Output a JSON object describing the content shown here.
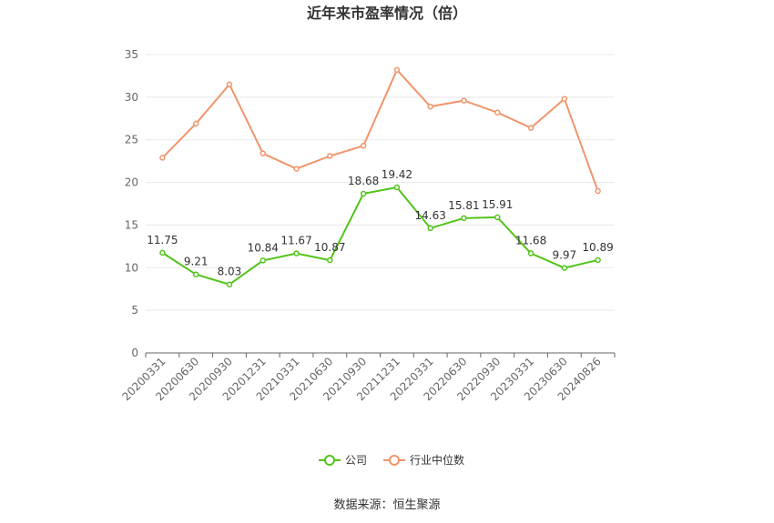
{
  "chart_data": {
    "type": "line",
    "title": "近年来市盈率情况（倍）",
    "categories": [
      "20200331",
      "20200630",
      "20200930",
      "20201231",
      "20210331",
      "20210630",
      "20210930",
      "20211231",
      "20220331",
      "20220630",
      "20220930",
      "20230331",
      "20230630",
      "20240826"
    ],
    "series": [
      {
        "name": "公司",
        "color": "#52c41a",
        "show_labels": true,
        "values": [
          11.75,
          9.21,
          8.03,
          10.84,
          11.67,
          10.87,
          18.68,
          19.42,
          14.63,
          15.81,
          15.91,
          11.68,
          9.97,
          10.89
        ]
      },
      {
        "name": "行业中位数",
        "color": "#f0956a",
        "show_labels": false,
        "values": [
          22.9,
          26.9,
          31.5,
          23.4,
          21.6,
          23.1,
          24.3,
          33.2,
          28.9,
          29.6,
          28.2,
          26.4,
          29.8,
          19.0
        ]
      }
    ],
    "yticks": [
      0,
      5,
      10,
      15,
      20,
      25,
      30,
      35
    ],
    "ylim": [
      0,
      35
    ],
    "grid": true,
    "legend_position": "bottom-center"
  },
  "source": "数据来源：恒生聚源"
}
